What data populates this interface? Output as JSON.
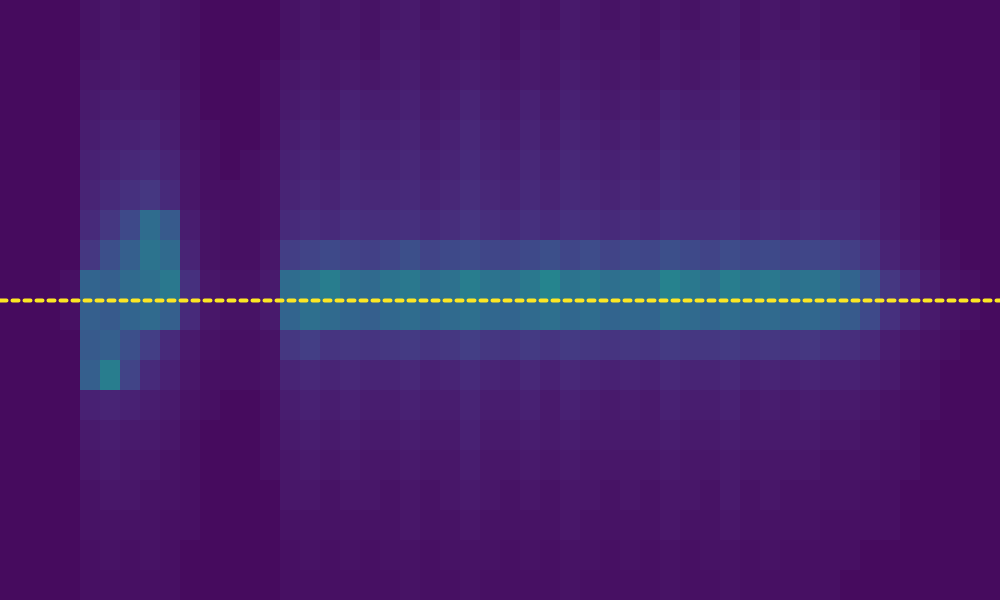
{
  "chart_data": {
    "type": "heatmap",
    "tick_labels": false,
    "xlim": [
      0,
      50
    ],
    "ylim": [
      0,
      20
    ],
    "color_range": [
      0,
      1
    ],
    "cells": [
      [
        0.03,
        0.03,
        0.03,
        0.03,
        0.05,
        0.06,
        0.05,
        0.06,
        0.05,
        0.04,
        0.03,
        0.03,
        0.03,
        0.03,
        0.05,
        0.06,
        0.05,
        0.06,
        0.05,
        0.06,
        0.07,
        0.05,
        0.06,
        0.07,
        0.06,
        0.05,
        0.06,
        0.05,
        0.07,
        0.06,
        0.05,
        0.06,
        0.05,
        0.06,
        0.05,
        0.06,
        0.07,
        0.05,
        0.06,
        0.05,
        0.06,
        0.05,
        0.05,
        0.04,
        0.04,
        0.03,
        0.03,
        0.03,
        0.03,
        0.03
      ],
      [
        0.03,
        0.03,
        0.03,
        0.03,
        0.05,
        0.06,
        0.06,
        0.06,
        0.05,
        0.04,
        0.03,
        0.03,
        0.03,
        0.03,
        0.05,
        0.06,
        0.06,
        0.06,
        0.05,
        0.07,
        0.07,
        0.06,
        0.06,
        0.07,
        0.06,
        0.05,
        0.07,
        0.06,
        0.07,
        0.06,
        0.06,
        0.06,
        0.05,
        0.07,
        0.06,
        0.06,
        0.07,
        0.05,
        0.06,
        0.06,
        0.06,
        0.05,
        0.05,
        0.05,
        0.04,
        0.04,
        0.03,
        0.03,
        0.03,
        0.03
      ],
      [
        0.03,
        0.03,
        0.03,
        0.03,
        0.06,
        0.06,
        0.07,
        0.06,
        0.06,
        0.04,
        0.03,
        0.03,
        0.03,
        0.04,
        0.06,
        0.07,
        0.06,
        0.07,
        0.06,
        0.07,
        0.08,
        0.06,
        0.07,
        0.08,
        0.07,
        0.06,
        0.07,
        0.06,
        0.08,
        0.07,
        0.06,
        0.07,
        0.06,
        0.07,
        0.06,
        0.07,
        0.08,
        0.06,
        0.07,
        0.06,
        0.07,
        0.06,
        0.06,
        0.05,
        0.05,
        0.04,
        0.03,
        0.03,
        0.03,
        0.03
      ],
      [
        0.03,
        0.03,
        0.03,
        0.03,
        0.07,
        0.08,
        0.08,
        0.08,
        0.07,
        0.05,
        0.03,
        0.03,
        0.03,
        0.04,
        0.07,
        0.08,
        0.07,
        0.09,
        0.08,
        0.08,
        0.09,
        0.07,
        0.08,
        0.1,
        0.08,
        0.07,
        0.09,
        0.07,
        0.09,
        0.08,
        0.07,
        0.08,
        0.07,
        0.09,
        0.08,
        0.08,
        0.09,
        0.07,
        0.08,
        0.07,
        0.08,
        0.07,
        0.07,
        0.06,
        0.05,
        0.04,
        0.04,
        0.03,
        0.03,
        0.03
      ],
      [
        0.03,
        0.03,
        0.03,
        0.03,
        0.08,
        0.09,
        0.09,
        0.1,
        0.08,
        0.05,
        0.04,
        0.03,
        0.03,
        0.04,
        0.08,
        0.09,
        0.08,
        0.1,
        0.09,
        0.09,
        0.1,
        0.08,
        0.09,
        0.11,
        0.09,
        0.08,
        0.1,
        0.08,
        0.1,
        0.09,
        0.08,
        0.09,
        0.08,
        0.1,
        0.09,
        0.09,
        0.1,
        0.08,
        0.09,
        0.08,
        0.09,
        0.08,
        0.08,
        0.07,
        0.06,
        0.05,
        0.04,
        0.03,
        0.03,
        0.03
      ],
      [
        0.03,
        0.03,
        0.03,
        0.03,
        0.09,
        0.1,
        0.11,
        0.12,
        0.1,
        0.06,
        0.04,
        0.03,
        0.04,
        0.05,
        0.09,
        0.1,
        0.09,
        0.11,
        0.1,
        0.1,
        0.11,
        0.09,
        0.1,
        0.12,
        0.1,
        0.09,
        0.11,
        0.09,
        0.11,
        0.1,
        0.09,
        0.1,
        0.09,
        0.11,
        0.1,
        0.1,
        0.11,
        0.09,
        0.1,
        0.09,
        0.1,
        0.09,
        0.09,
        0.08,
        0.07,
        0.05,
        0.04,
        0.03,
        0.03,
        0.03
      ],
      [
        0.03,
        0.03,
        0.03,
        0.03,
        0.1,
        0.12,
        0.14,
        0.16,
        0.12,
        0.06,
        0.04,
        0.04,
        0.04,
        0.05,
        0.1,
        0.11,
        0.1,
        0.12,
        0.11,
        0.11,
        0.12,
        0.1,
        0.11,
        0.13,
        0.11,
        0.1,
        0.12,
        0.1,
        0.12,
        0.11,
        0.1,
        0.11,
        0.1,
        0.12,
        0.11,
        0.11,
        0.12,
        0.1,
        0.11,
        0.1,
        0.11,
        0.1,
        0.1,
        0.09,
        0.07,
        0.06,
        0.04,
        0.03,
        0.03,
        0.03
      ],
      [
        0.03,
        0.03,
        0.03,
        0.03,
        0.12,
        0.16,
        0.22,
        0.35,
        0.28,
        0.08,
        0.05,
        0.04,
        0.04,
        0.05,
        0.12,
        0.13,
        0.12,
        0.14,
        0.13,
        0.13,
        0.14,
        0.12,
        0.13,
        0.15,
        0.13,
        0.12,
        0.14,
        0.12,
        0.14,
        0.13,
        0.12,
        0.13,
        0.12,
        0.14,
        0.13,
        0.13,
        0.14,
        0.12,
        0.13,
        0.12,
        0.13,
        0.12,
        0.12,
        0.1,
        0.08,
        0.06,
        0.05,
        0.03,
        0.03,
        0.03
      ],
      [
        0.03,
        0.03,
        0.03,
        0.03,
        0.16,
        0.24,
        0.3,
        0.38,
        0.34,
        0.1,
        0.05,
        0.04,
        0.04,
        0.06,
        0.18,
        0.2,
        0.22,
        0.2,
        0.19,
        0.21,
        0.24,
        0.2,
        0.22,
        0.23,
        0.21,
        0.2,
        0.22,
        0.24,
        0.21,
        0.23,
        0.2,
        0.22,
        0.21,
        0.24,
        0.22,
        0.2,
        0.23,
        0.21,
        0.22,
        0.2,
        0.21,
        0.2,
        0.18,
        0.15,
        0.1,
        0.08,
        0.06,
        0.04,
        0.03,
        0.03
      ],
      [
        0.03,
        0.03,
        0.03,
        0.04,
        0.32,
        0.3,
        0.34,
        0.36,
        0.4,
        0.14,
        0.06,
        0.05,
        0.05,
        0.07,
        0.35,
        0.38,
        0.42,
        0.36,
        0.34,
        0.38,
        0.4,
        0.35,
        0.37,
        0.42,
        0.38,
        0.36,
        0.4,
        0.45,
        0.38,
        0.4,
        0.36,
        0.38,
        0.37,
        0.44,
        0.4,
        0.36,
        0.42,
        0.38,
        0.4,
        0.36,
        0.38,
        0.36,
        0.32,
        0.26,
        0.16,
        0.12,
        0.08,
        0.05,
        0.04,
        0.03
      ],
      [
        0.03,
        0.03,
        0.03,
        0.04,
        0.3,
        0.28,
        0.32,
        0.34,
        0.3,
        0.12,
        0.06,
        0.05,
        0.05,
        0.07,
        0.32,
        0.36,
        0.34,
        0.32,
        0.3,
        0.33,
        0.35,
        0.32,
        0.34,
        0.36,
        0.33,
        0.32,
        0.34,
        0.36,
        0.33,
        0.35,
        0.32,
        0.33,
        0.32,
        0.36,
        0.34,
        0.32,
        0.35,
        0.33,
        0.34,
        0.32,
        0.33,
        0.31,
        0.28,
        0.22,
        0.14,
        0.1,
        0.07,
        0.05,
        0.04,
        0.03
      ],
      [
        0.03,
        0.03,
        0.03,
        0.03,
        0.28,
        0.3,
        0.24,
        0.18,
        0.12,
        0.07,
        0.05,
        0.04,
        0.04,
        0.05,
        0.16,
        0.18,
        0.15,
        0.16,
        0.15,
        0.16,
        0.17,
        0.15,
        0.16,
        0.18,
        0.16,
        0.15,
        0.17,
        0.15,
        0.17,
        0.16,
        0.15,
        0.16,
        0.15,
        0.17,
        0.16,
        0.16,
        0.17,
        0.15,
        0.16,
        0.15,
        0.16,
        0.14,
        0.13,
        0.11,
        0.08,
        0.06,
        0.05,
        0.04,
        0.03,
        0.03
      ],
      [
        0.03,
        0.03,
        0.03,
        0.03,
        0.3,
        0.42,
        0.2,
        0.12,
        0.09,
        0.06,
        0.04,
        0.04,
        0.04,
        0.05,
        0.1,
        0.11,
        0.1,
        0.11,
        0.1,
        0.1,
        0.11,
        0.09,
        0.1,
        0.12,
        0.1,
        0.09,
        0.11,
        0.09,
        0.11,
        0.1,
        0.09,
        0.1,
        0.09,
        0.11,
        0.1,
        0.1,
        0.11,
        0.09,
        0.1,
        0.09,
        0.1,
        0.09,
        0.09,
        0.08,
        0.07,
        0.05,
        0.04,
        0.03,
        0.03,
        0.03
      ],
      [
        0.03,
        0.03,
        0.03,
        0.03,
        0.09,
        0.1,
        0.09,
        0.08,
        0.07,
        0.05,
        0.04,
        0.03,
        0.03,
        0.04,
        0.08,
        0.09,
        0.08,
        0.09,
        0.08,
        0.08,
        0.09,
        0.08,
        0.08,
        0.1,
        0.08,
        0.08,
        0.09,
        0.07,
        0.09,
        0.08,
        0.07,
        0.08,
        0.07,
        0.09,
        0.08,
        0.08,
        0.09,
        0.07,
        0.08,
        0.07,
        0.08,
        0.07,
        0.07,
        0.06,
        0.05,
        0.04,
        0.04,
        0.03,
        0.03,
        0.03
      ],
      [
        0.03,
        0.03,
        0.03,
        0.03,
        0.07,
        0.08,
        0.07,
        0.07,
        0.06,
        0.04,
        0.03,
        0.03,
        0.03,
        0.04,
        0.07,
        0.08,
        0.07,
        0.08,
        0.07,
        0.07,
        0.08,
        0.07,
        0.07,
        0.09,
        0.07,
        0.07,
        0.08,
        0.07,
        0.08,
        0.07,
        0.07,
        0.07,
        0.07,
        0.08,
        0.07,
        0.07,
        0.08,
        0.07,
        0.07,
        0.07,
        0.07,
        0.06,
        0.06,
        0.05,
        0.05,
        0.04,
        0.03,
        0.03,
        0.03,
        0.03
      ],
      [
        0.03,
        0.03,
        0.03,
        0.03,
        0.06,
        0.07,
        0.06,
        0.06,
        0.05,
        0.04,
        0.03,
        0.03,
        0.03,
        0.04,
        0.06,
        0.07,
        0.06,
        0.07,
        0.06,
        0.06,
        0.07,
        0.06,
        0.06,
        0.08,
        0.06,
        0.06,
        0.07,
        0.06,
        0.07,
        0.06,
        0.06,
        0.06,
        0.06,
        0.07,
        0.06,
        0.06,
        0.07,
        0.06,
        0.06,
        0.06,
        0.06,
        0.05,
        0.05,
        0.05,
        0.04,
        0.04,
        0.03,
        0.03,
        0.03,
        0.03
      ],
      [
        0.03,
        0.03,
        0.03,
        0.03,
        0.05,
        0.06,
        0.06,
        0.05,
        0.05,
        0.04,
        0.03,
        0.03,
        0.03,
        0.03,
        0.06,
        0.06,
        0.05,
        0.06,
        0.06,
        0.05,
        0.06,
        0.05,
        0.06,
        0.07,
        0.06,
        0.05,
        0.06,
        0.05,
        0.06,
        0.06,
        0.05,
        0.06,
        0.05,
        0.06,
        0.06,
        0.05,
        0.07,
        0.05,
        0.06,
        0.05,
        0.05,
        0.05,
        0.05,
        0.04,
        0.04,
        0.03,
        0.03,
        0.03,
        0.03,
        0.03
      ],
      [
        0.03,
        0.03,
        0.03,
        0.03,
        0.05,
        0.05,
        0.05,
        0.05,
        0.04,
        0.04,
        0.03,
        0.03,
        0.03,
        0.03,
        0.05,
        0.05,
        0.05,
        0.05,
        0.05,
        0.05,
        0.06,
        0.05,
        0.05,
        0.06,
        0.05,
        0.05,
        0.05,
        0.05,
        0.06,
        0.05,
        0.05,
        0.05,
        0.05,
        0.06,
        0.05,
        0.05,
        0.06,
        0.05,
        0.05,
        0.05,
        0.05,
        0.04,
        0.04,
        0.04,
        0.04,
        0.03,
        0.03,
        0.03,
        0.03,
        0.03
      ],
      [
        0.03,
        0.03,
        0.03,
        0.03,
        0.04,
        0.05,
        0.04,
        0.05,
        0.04,
        0.03,
        0.03,
        0.03,
        0.03,
        0.03,
        0.04,
        0.05,
        0.04,
        0.05,
        0.04,
        0.05,
        0.05,
        0.04,
        0.05,
        0.05,
        0.05,
        0.04,
        0.05,
        0.04,
        0.05,
        0.05,
        0.04,
        0.05,
        0.04,
        0.05,
        0.04,
        0.05,
        0.05,
        0.04,
        0.05,
        0.04,
        0.04,
        0.04,
        0.04,
        0.03,
        0.03,
        0.03,
        0.03,
        0.03,
        0.03,
        0.03
      ],
      [
        0.03,
        0.03,
        0.03,
        0.03,
        0.04,
        0.04,
        0.04,
        0.04,
        0.04,
        0.03,
        0.03,
        0.03,
        0.03,
        0.03,
        0.04,
        0.04,
        0.04,
        0.04,
        0.04,
        0.04,
        0.05,
        0.04,
        0.04,
        0.05,
        0.04,
        0.04,
        0.04,
        0.04,
        0.05,
        0.04,
        0.04,
        0.04,
        0.04,
        0.05,
        0.04,
        0.04,
        0.05,
        0.04,
        0.04,
        0.04,
        0.04,
        0.04,
        0.03,
        0.03,
        0.03,
        0.03,
        0.03,
        0.03,
        0.03,
        0.03
      ]
    ],
    "series": [
      {
        "type": "line",
        "color": "#fde725",
        "line_style": "dotted",
        "x": [
          0,
          50
        ],
        "values": [
          10,
          10
        ]
      }
    ]
  }
}
